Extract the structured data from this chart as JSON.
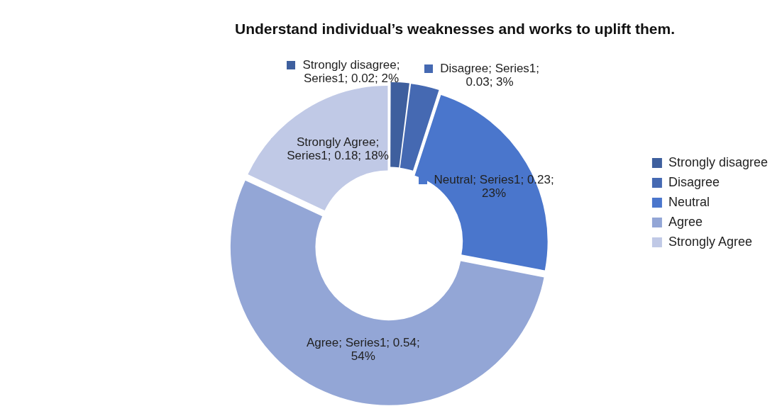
{
  "chart_data": {
    "type": "donut",
    "title": "Understand individual’s weaknesses and works to uplift them.",
    "categories": [
      "Strongly disagree",
      "Disagree",
      "Neutral",
      "Agree",
      "Strongly Agree"
    ],
    "values": [
      0.02,
      0.03,
      0.23,
      0.54,
      0.18
    ],
    "colors": [
      "#3e5f9e",
      "#4569b2",
      "#4a76cc",
      "#93a6d6",
      "#c0c9e6"
    ],
    "value_labels": [
      "Strongly disagree; Series1; 0.02; 2%",
      "Disagree; Series1; 0.03; 3%",
      "Neutral; Series1; 0.23; 23%",
      "Agree; Series1; 0.54; 54%",
      "Strongly Agree; Series1; 0.18; 18%"
    ],
    "legend": "right"
  }
}
